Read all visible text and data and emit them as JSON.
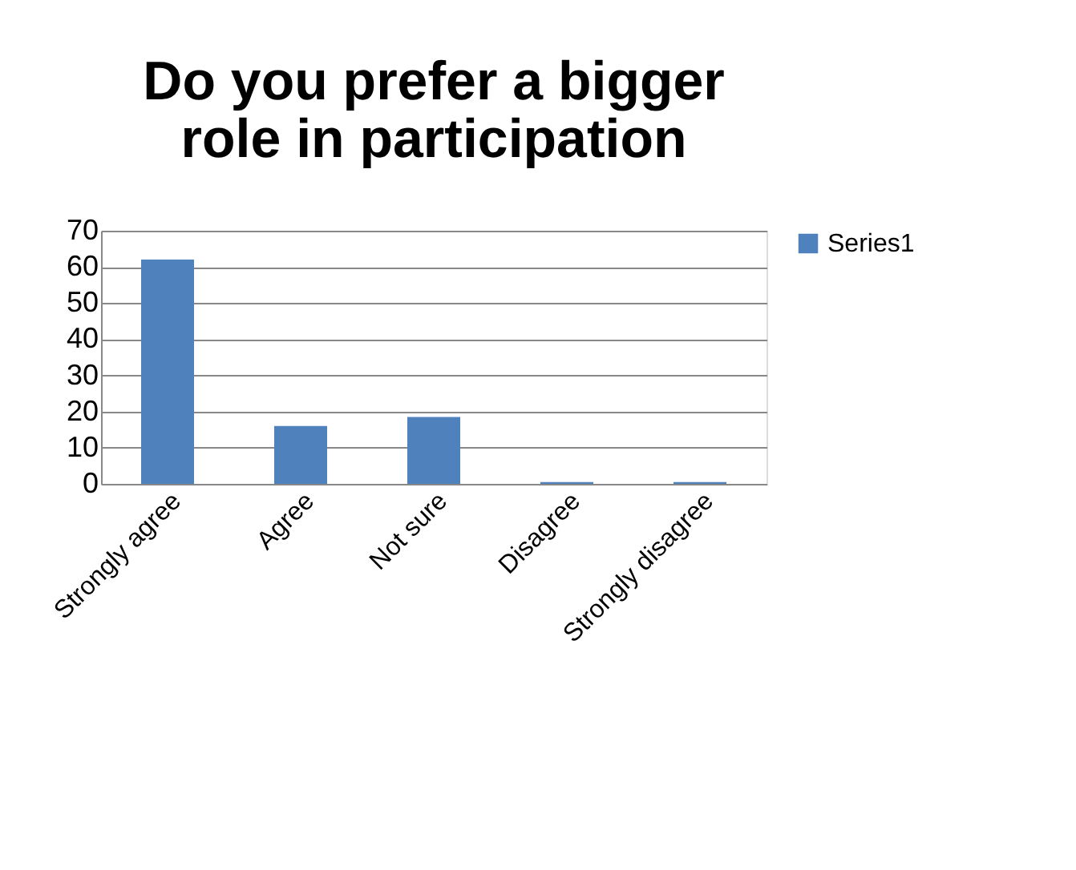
{
  "chart_data": {
    "type": "bar",
    "title": [
      "Do you prefer a bigger",
      "role in participation"
    ],
    "categories": [
      "Strongly agree",
      "Agree",
      "Not sure",
      "Disagree",
      "Strongly disagree"
    ],
    "series": [
      {
        "name": "Series1",
        "color": "#4f81bd",
        "values": [
          62,
          16,
          18.5,
          0.5,
          0.5
        ]
      }
    ],
    "ylim": [
      0,
      70
    ],
    "yticks": [
      0,
      10,
      20,
      30,
      40,
      50,
      60,
      70
    ],
    "grid": "y",
    "legend": "right"
  }
}
